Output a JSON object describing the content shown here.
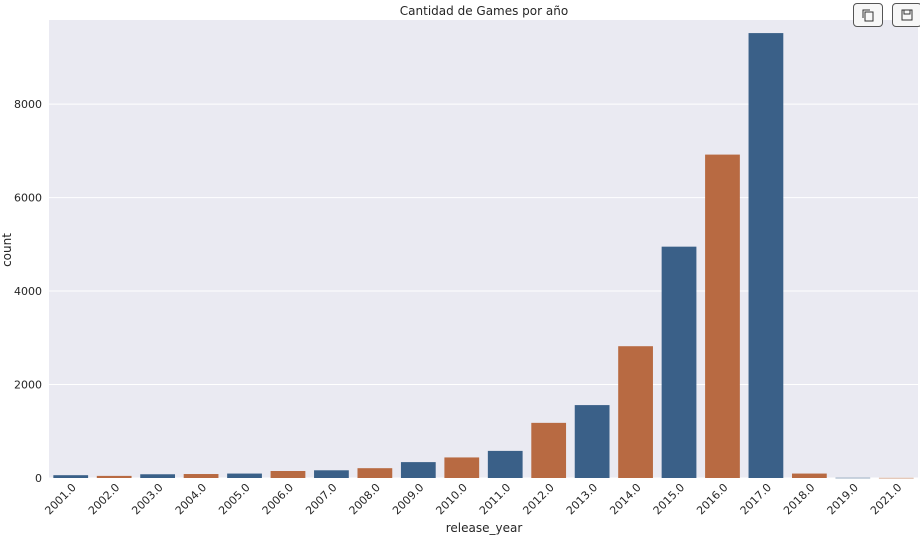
{
  "toolbar": {
    "copy_icon": "copy-icon",
    "save_icon": "save-icon"
  },
  "chart_data": {
    "type": "bar",
    "title": "Cantidad de Games por año",
    "xlabel": "release_year",
    "ylabel": "count",
    "ylim": [
      0,
      9800
    ],
    "yticks": [
      0,
      2000,
      4000,
      6000,
      8000
    ],
    "ytick_labels": [
      "0",
      "2000",
      "4000",
      "6000",
      "8000"
    ],
    "grid": true,
    "categories": [
      "2001.0",
      "2002.0",
      "2003.0",
      "2004.0",
      "2005.0",
      "2006.0",
      "2007.0",
      "2008.0",
      "2009.0",
      "2010.0",
      "2011.0",
      "2012.0",
      "2013.0",
      "2014.0",
      "2015.0",
      "2016.0",
      "2017.0",
      "2018.0",
      "2019.0",
      "2021.0"
    ],
    "values": [
      60,
      45,
      80,
      85,
      95,
      150,
      165,
      210,
      340,
      440,
      580,
      1180,
      1560,
      2820,
      4950,
      6920,
      9520,
      95,
      5,
      3
    ],
    "colors": [
      "#3a6088",
      "#b86a42",
      "#3a6088",
      "#b86a42",
      "#3a6088",
      "#b86a42",
      "#3a6088",
      "#b86a42",
      "#3a6088",
      "#b86a42",
      "#3a6088",
      "#b86a42",
      "#3a6088",
      "#b86a42",
      "#3a6088",
      "#b86a42",
      "#3a6088",
      "#b86a42",
      "#3a6088",
      "#b86a42"
    ],
    "background": "#eaeaf2"
  }
}
